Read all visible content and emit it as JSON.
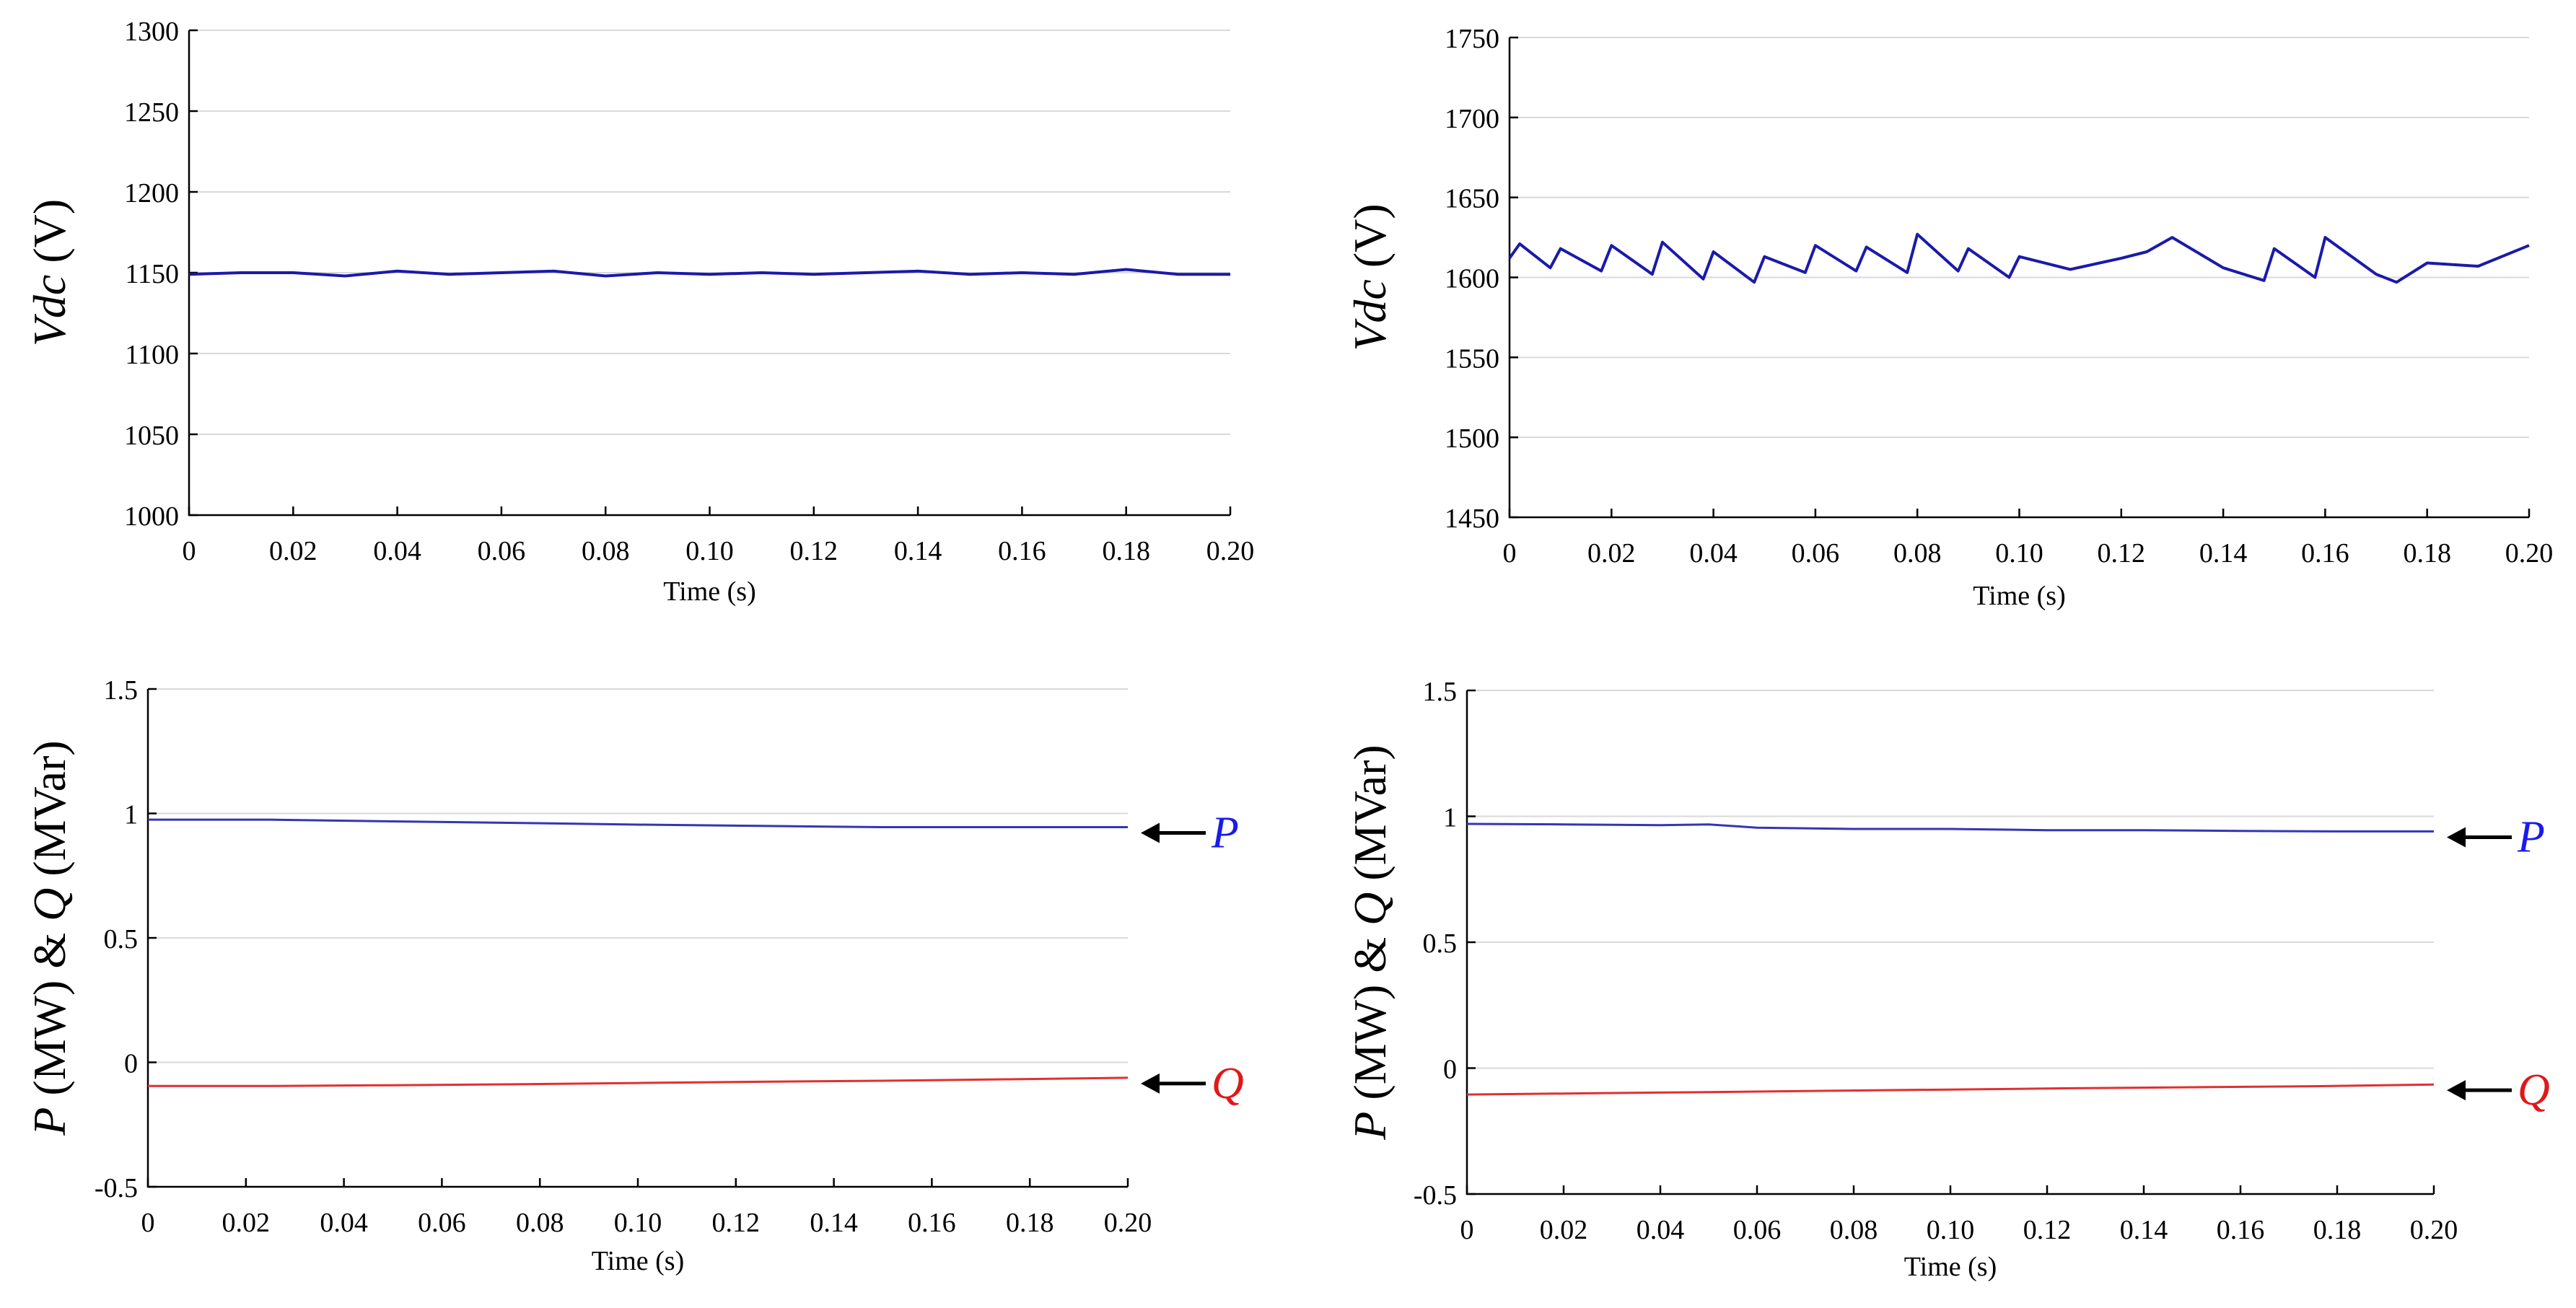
{
  "chart_data": [
    {
      "type": "line",
      "panel": "top-left",
      "title": "",
      "xlabel": "Time (s)",
      "ylabel": {
        "parts": [
          {
            "text": "Vdc",
            "italic": true
          },
          {
            "text": " (V)",
            "italic": false
          }
        ]
      },
      "xlim": [
        0,
        0.2
      ],
      "ylim": [
        1000,
        1300
      ],
      "xticks": [
        "0",
        "0.02",
        "0.04",
        "0.06",
        "0.08",
        "0.10",
        "0.12",
        "0.14",
        "0.16",
        "0.18",
        "0.20"
      ],
      "yticks": [
        "1000",
        "1050",
        "1100",
        "1150",
        "1200",
        "1250",
        "1300"
      ],
      "grid": true,
      "series": [
        {
          "name": "Vdc",
          "color": "#1a1aaa",
          "x": [
            0,
            0.01,
            0.02,
            0.03,
            0.04,
            0.05,
            0.06,
            0.07,
            0.08,
            0.09,
            0.1,
            0.11,
            0.12,
            0.13,
            0.14,
            0.15,
            0.16,
            0.17,
            0.18,
            0.19,
            0.2
          ],
          "y": [
            1149,
            1150,
            1150,
            1148,
            1151,
            1149,
            1150,
            1151,
            1148,
            1150,
            1149,
            1150,
            1149,
            1150,
            1151,
            1149,
            1150,
            1149,
            1152,
            1149,
            1149
          ]
        }
      ]
    },
    {
      "type": "line",
      "panel": "top-right",
      "title": "",
      "xlabel": "Time (s)",
      "ylabel": {
        "parts": [
          {
            "text": "Vdc",
            "italic": true
          },
          {
            "text": " (V)",
            "italic": false
          }
        ]
      },
      "xlim": [
        0,
        0.2
      ],
      "ylim": [
        1450,
        1750
      ],
      "xticks": [
        "0",
        "0.02",
        "0.04",
        "0.06",
        "0.08",
        "0.10",
        "0.12",
        "0.14",
        "0.16",
        "0.18",
        "0.20"
      ],
      "yticks": [
        "1450",
        "1500",
        "1550",
        "1600",
        "1650",
        "1700",
        "1750"
      ],
      "grid": true,
      "series": [
        {
          "name": "Vdc",
          "color": "#1a1aaa",
          "x": [
            0,
            0.002,
            0.008,
            0.01,
            0.018,
            0.02,
            0.028,
            0.03,
            0.038,
            0.04,
            0.048,
            0.05,
            0.058,
            0.06,
            0.068,
            0.07,
            0.078,
            0.08,
            0.088,
            0.09,
            0.098,
            0.1,
            0.11,
            0.12,
            0.125,
            0.13,
            0.14,
            0.148,
            0.15,
            0.158,
            0.16,
            0.17,
            0.174,
            0.18,
            0.19,
            0.2
          ],
          "y": [
            1612,
            1621,
            1606,
            1618,
            1604,
            1620,
            1602,
            1622,
            1599,
            1616,
            1597,
            1613,
            1603,
            1620,
            1604,
            1619,
            1603,
            1627,
            1604,
            1618,
            1600,
            1613,
            1605,
            1612,
            1616,
            1625,
            1606,
            1598,
            1618,
            1600,
            1625,
            1602,
            1597,
            1609,
            1607,
            1620
          ]
        }
      ]
    },
    {
      "type": "line",
      "panel": "bottom-left",
      "title": "",
      "xlabel": "Time (s)",
      "ylabel": {
        "parts": [
          {
            "text": "P",
            "italic": true
          },
          {
            "text": " (MW) & ",
            "italic": false
          },
          {
            "text": "Q",
            "italic": true
          },
          {
            "text": " (MVar)",
            "italic": false
          }
        ]
      },
      "xlim": [
        0,
        0.2
      ],
      "ylim": [
        -0.5,
        1.5
      ],
      "xticks": [
        "0",
        "0.02",
        "0.04",
        "0.06",
        "0.08",
        "0.10",
        "0.12",
        "0.14",
        "0.16",
        "0.18",
        "0.20"
      ],
      "yticks": [
        "-0.5",
        "0",
        "0.5",
        "1",
        "1.5"
      ],
      "grid": true,
      "series": [
        {
          "name": "P",
          "color": "#3535b5",
          "x": [
            0,
            0.025,
            0.05,
            0.075,
            0.1,
            0.125,
            0.15,
            0.175,
            0.2
          ],
          "y": [
            0.975,
            0.975,
            0.968,
            0.962,
            0.955,
            0.95,
            0.945,
            0.945,
            0.945
          ]
        },
        {
          "name": "Q",
          "color": "#e03030",
          "x": [
            0,
            0.025,
            0.05,
            0.075,
            0.1,
            0.125,
            0.15,
            0.175,
            0.2
          ],
          "y": [
            -0.095,
            -0.095,
            -0.092,
            -0.088,
            -0.083,
            -0.078,
            -0.074,
            -0.068,
            -0.062
          ]
        }
      ],
      "annotations": [
        {
          "text": "P",
          "series": "P",
          "color": "#1a1aee"
        },
        {
          "text": "Q",
          "series": "Q",
          "color": "#e01818"
        }
      ]
    },
    {
      "type": "line",
      "panel": "bottom-right",
      "title": "",
      "xlabel": "Time (s)",
      "ylabel": {
        "parts": [
          {
            "text": "P",
            "italic": true
          },
          {
            "text": " (MW) & ",
            "italic": false
          },
          {
            "text": "Q",
            "italic": true
          },
          {
            "text": " (MVar)",
            "italic": false
          }
        ]
      },
      "xlim": [
        0,
        0.2
      ],
      "ylim": [
        -0.5,
        1.5
      ],
      "xticks": [
        "0",
        "0.02",
        "0.04",
        "0.06",
        "0.08",
        "0.10",
        "0.12",
        "0.14",
        "0.16",
        "0.18",
        "0.20"
      ],
      "yticks": [
        "-0.5",
        "0",
        "0.5",
        "1",
        "1.5"
      ],
      "grid": true,
      "series": [
        {
          "name": "P",
          "color": "#3535b5",
          "x": [
            0,
            0.02,
            0.04,
            0.05,
            0.06,
            0.08,
            0.1,
            0.12,
            0.14,
            0.16,
            0.18,
            0.2
          ],
          "y": [
            0.97,
            0.968,
            0.965,
            0.968,
            0.955,
            0.95,
            0.95,
            0.945,
            0.945,
            0.942,
            0.94,
            0.94
          ]
        },
        {
          "name": "Q",
          "color": "#e03030",
          "x": [
            0,
            0.025,
            0.05,
            0.075,
            0.1,
            0.125,
            0.15,
            0.175,
            0.2
          ],
          "y": [
            -0.105,
            -0.1,
            -0.095,
            -0.09,
            -0.085,
            -0.08,
            -0.076,
            -0.072,
            -0.065
          ]
        }
      ],
      "annotations": [
        {
          "text": "P",
          "series": "P",
          "color": "#1a1aee"
        },
        {
          "text": "Q",
          "series": "Q",
          "color": "#e01818"
        }
      ]
    }
  ]
}
